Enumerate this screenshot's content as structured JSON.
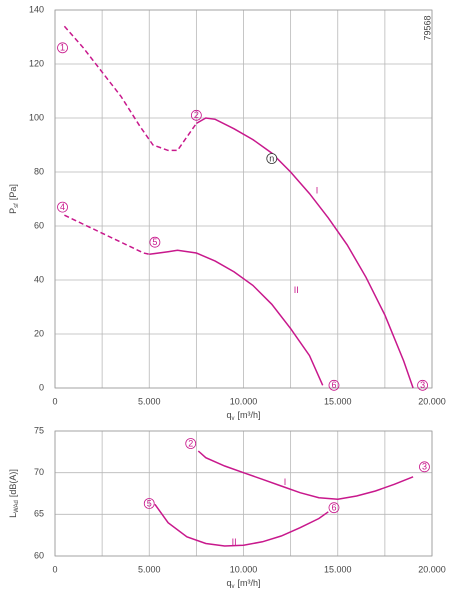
{
  "chart_data": [
    {
      "type": "line",
      "drawing_id": "79568",
      "xlabel": {
        "text": "q",
        "sub": "v",
        "unit": "[m³/h]"
      },
      "ylabel": {
        "text": "P",
        "sub": "sf",
        "unit": "[Pa]"
      },
      "xlim": [
        0,
        20000
      ],
      "ylim": [
        0,
        140
      ],
      "xticks": [
        0,
        {
          "value": 5000,
          "label": "5.000"
        },
        {
          "value": 10000,
          "label": "10.000"
        },
        {
          "value": 15000,
          "label": "15.000"
        },
        {
          "value": 20000,
          "label": "20.000"
        }
      ],
      "xminor": [
        2500,
        7500,
        12500,
        17500
      ],
      "yticks": [
        0,
        20,
        40,
        60,
        80,
        100,
        120,
        140
      ],
      "grid": true,
      "series": [
        {
          "color": "#c8188c",
          "linestyle": "dashed",
          "x": [
            500,
            1500,
            2500,
            3500,
            4500,
            5200,
            6000,
            6500,
            7000,
            7500
          ],
          "values": [
            134,
            126,
            117,
            108,
            97,
            90,
            88,
            88,
            93,
            98
          ]
        },
        {
          "color": "#c8188c",
          "linestyle": "solid",
          "x": [
            7500,
            8000,
            8500,
            9500,
            10500,
            11500,
            12500,
            13500,
            14500,
            15500,
            16500,
            17500,
            18500,
            19000
          ],
          "values": [
            98,
            100,
            99.5,
            96,
            92,
            87,
            80,
            72,
            63,
            53,
            41,
            27,
            10,
            0
          ]
        },
        {
          "color": "#c8188c",
          "linestyle": "dashed",
          "x": [
            500,
            2000,
            3500,
            4700,
            5000
          ],
          "values": [
            64,
            59,
            54,
            50,
            49.5
          ]
        },
        {
          "color": "#c8188c",
          "linestyle": "solid",
          "x": [
            5000,
            6000,
            6500,
            7500,
            8500,
            9500,
            10500,
            11500,
            12500,
            13500,
            14200
          ],
          "values": [
            49.5,
            50.5,
            51,
            50,
            47,
            43,
            38,
            31,
            22,
            12,
            1
          ]
        }
      ],
      "annotations": [
        {
          "text": "1",
          "circled": true,
          "x": 400,
          "y": 126
        },
        {
          "text": "2",
          "circled": true,
          "x": 7500,
          "y": 101
        },
        {
          "text": "3",
          "circled": true,
          "x": 19500,
          "y": 1
        },
        {
          "text": "4",
          "circled": true,
          "x": 400,
          "y": 67
        },
        {
          "text": "5",
          "circled": true,
          "x": 5300,
          "y": 54
        },
        {
          "text": "6",
          "circled": true,
          "x": 14800,
          "y": 1
        },
        {
          "text": "n",
          "circled": true,
          "dark": true,
          "x": 11500,
          "y": 85
        },
        {
          "text": "I",
          "circled": false,
          "x": 13900,
          "y": 73
        },
        {
          "text": "II",
          "circled": false,
          "x": 12800,
          "y": 36
        }
      ]
    },
    {
      "type": "line",
      "xlabel": {
        "text": "q",
        "sub": "v",
        "unit": "[m³/h]"
      },
      "ylabel": {
        "text": "L",
        "sub": "WAd",
        "unit": "[dB(A)]"
      },
      "xlim": [
        0,
        20000
      ],
      "ylim": [
        60,
        75
      ],
      "xticks": [
        0,
        {
          "value": 5000,
          "label": "5.000"
        },
        {
          "value": 10000,
          "label": "10.000"
        },
        {
          "value": 15000,
          "label": "15.000"
        },
        {
          "value": 20000,
          "label": "20.000"
        }
      ],
      "xminor": [
        2500,
        7500,
        12500,
        17500
      ],
      "yticks": [
        60,
        65,
        70,
        75
      ],
      "grid": true,
      "series": [
        {
          "color": "#c8188c",
          "linestyle": "solid",
          "x": [
            7600,
            8000,
            9000,
            10000,
            11000,
            12000,
            13000,
            14000,
            15000,
            16000,
            17000,
            18000,
            19000
          ],
          "values": [
            72.6,
            71.8,
            70.8,
            70,
            69.2,
            68.4,
            67.6,
            67,
            66.8,
            67.2,
            67.8,
            68.6,
            69.5
          ]
        },
        {
          "color": "#c8188c",
          "linestyle": "solid",
          "x": [
            5300,
            6000,
            7000,
            8000,
            9000,
            10000,
            11000,
            12000,
            13000,
            14000,
            14500
          ],
          "values": [
            66.2,
            64,
            62.3,
            61.5,
            61.2,
            61.3,
            61.7,
            62.4,
            63.4,
            64.5,
            65.3
          ]
        }
      ],
      "annotations": [
        {
          "text": "2",
          "circled": true,
          "x": 7200,
          "y": 73.5
        },
        {
          "text": "3",
          "circled": true,
          "x": 19600,
          "y": 70.7
        },
        {
          "text": "5",
          "circled": true,
          "x": 5000,
          "y": 66.3
        },
        {
          "text": "6",
          "circled": true,
          "x": 14800,
          "y": 65.8
        },
        {
          "text": "I",
          "circled": false,
          "x": 12200,
          "y": 68.8
        },
        {
          "text": "II",
          "circled": false,
          "x": 9500,
          "y": 61.6
        }
      ]
    }
  ]
}
